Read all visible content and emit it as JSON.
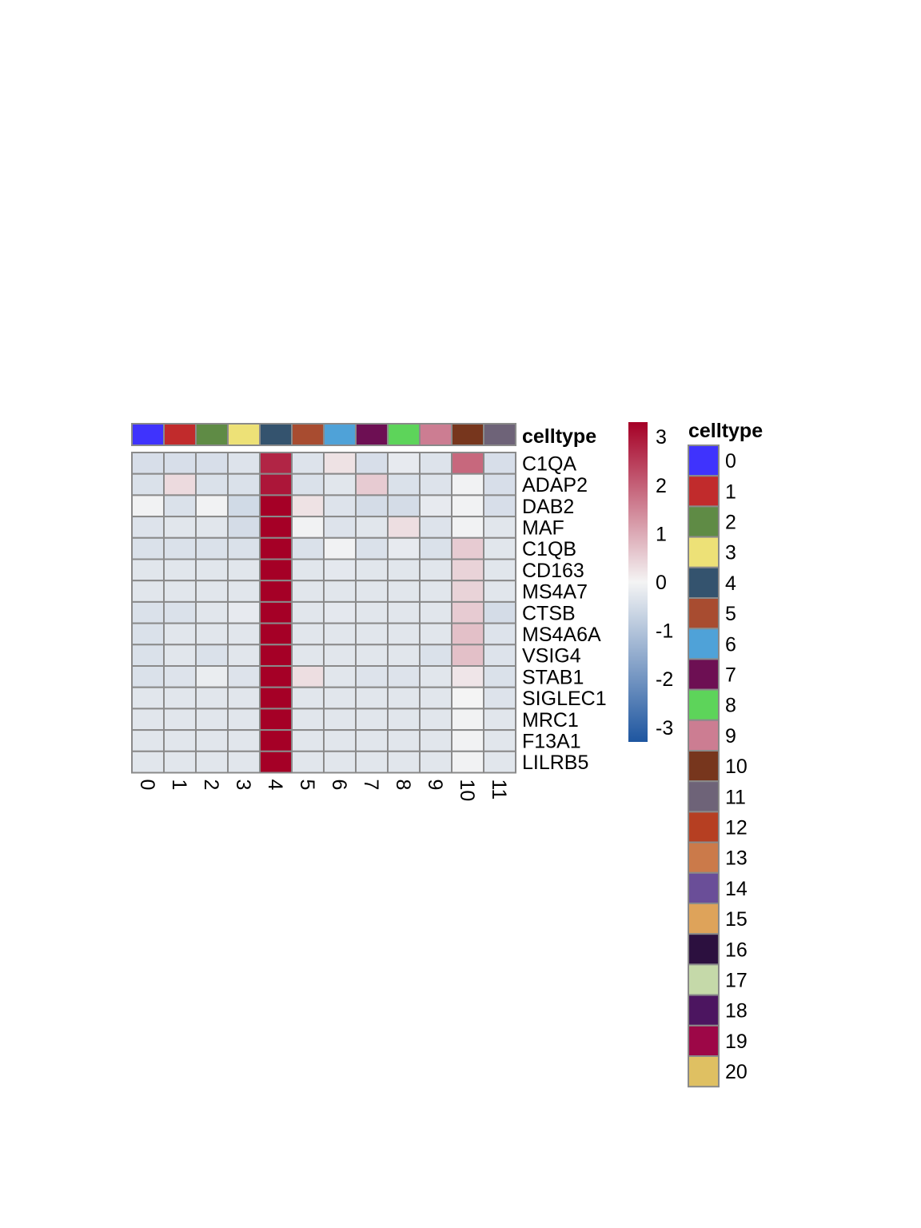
{
  "chart_data": {
    "type": "heatmap",
    "annotation_title": "celltype",
    "columns": [
      "0",
      "1",
      "2",
      "3",
      "4",
      "5",
      "6",
      "7",
      "8",
      "9",
      "10",
      "11"
    ],
    "rows": [
      "C1QA",
      "ADAP2",
      "DAB2",
      "MAF",
      "C1QB",
      "CD163",
      "MS4A7",
      "CTSB",
      "MS4A6A",
      "VSIG4",
      "STAB1",
      "SIGLEC1",
      "MRC1",
      "F13A1",
      "LILRB5"
    ],
    "values": [
      [
        -0.45,
        -0.45,
        -0.45,
        -0.35,
        2.8,
        -0.35,
        0.25,
        -0.45,
        -0.2,
        -0.35,
        1.9,
        -0.45
      ],
      [
        -0.4,
        0.35,
        -0.4,
        -0.4,
        3.0,
        -0.4,
        -0.3,
        0.55,
        -0.4,
        -0.35,
        -0.05,
        -0.45
      ],
      [
        -0.05,
        -0.4,
        -0.05,
        -0.55,
        3.3,
        0.25,
        -0.35,
        -0.5,
        -0.5,
        -0.2,
        -0.05,
        -0.45
      ],
      [
        -0.35,
        -0.3,
        -0.3,
        -0.5,
        3.3,
        -0.05,
        -0.35,
        -0.3,
        0.3,
        -0.35,
        -0.05,
        -0.3
      ],
      [
        -0.4,
        -0.4,
        -0.4,
        -0.4,
        3.3,
        -0.4,
        -0.05,
        -0.4,
        -0.2,
        -0.4,
        0.55,
        -0.3
      ],
      [
        -0.3,
        -0.3,
        -0.3,
        -0.3,
        3.3,
        -0.3,
        -0.25,
        -0.3,
        -0.3,
        -0.3,
        0.45,
        -0.3
      ],
      [
        -0.3,
        -0.3,
        -0.3,
        -0.3,
        3.3,
        -0.3,
        -0.3,
        -0.3,
        -0.3,
        -0.3,
        0.45,
        -0.3
      ],
      [
        -0.4,
        -0.4,
        -0.3,
        -0.2,
        3.3,
        -0.3,
        -0.25,
        -0.3,
        -0.3,
        -0.3,
        0.55,
        -0.5
      ],
      [
        -0.4,
        -0.3,
        -0.3,
        -0.3,
        3.3,
        -0.3,
        -0.3,
        -0.3,
        -0.3,
        -0.3,
        0.7,
        -0.35
      ],
      [
        -0.4,
        -0.3,
        -0.4,
        -0.3,
        3.3,
        -0.3,
        -0.3,
        -0.3,
        -0.3,
        -0.4,
        0.7,
        -0.35
      ],
      [
        -0.4,
        -0.35,
        -0.15,
        -0.35,
        3.3,
        0.3,
        -0.3,
        -0.35,
        -0.35,
        -0.3,
        0.2,
        -0.4
      ],
      [
        -0.3,
        -0.3,
        -0.3,
        -0.3,
        3.3,
        -0.3,
        -0.3,
        -0.3,
        -0.3,
        -0.3,
        0.0,
        -0.35
      ],
      [
        -0.3,
        -0.3,
        -0.3,
        -0.3,
        3.3,
        -0.3,
        -0.3,
        -0.3,
        -0.3,
        -0.3,
        -0.05,
        -0.3
      ],
      [
        -0.3,
        -0.3,
        -0.3,
        -0.3,
        3.3,
        -0.3,
        -0.3,
        -0.3,
        -0.3,
        -0.3,
        -0.05,
        -0.3
      ],
      [
        -0.3,
        -0.3,
        -0.3,
        -0.3,
        3.3,
        -0.3,
        -0.3,
        -0.3,
        -0.3,
        -0.3,
        -0.05,
        -0.3
      ]
    ],
    "color_scale": {
      "min": -3.3,
      "max": 3.3,
      "ticks": [
        "3",
        "2",
        "1",
        "0",
        "-1",
        "-2",
        "-3"
      ],
      "tick_values": [
        3,
        2,
        1,
        0,
        -1,
        -2,
        -3
      ],
      "colors": [
        "#1e56a0",
        "#f4f4f4",
        "#a50026"
      ]
    },
    "celltype_colors": {
      "0": "#3f33fd",
      "1": "#c12b2c",
      "2": "#5f8b45",
      "3": "#ede177",
      "4": "#34536e",
      "5": "#a84c30",
      "6": "#4fa2d8",
      "7": "#6d0f53",
      "8": "#5dd45a",
      "9": "#cc7d92",
      "10": "#77361d",
      "11": "#6e6378",
      "12": "#b63f22",
      "13": "#cb7a4a",
      "14": "#6a4e98",
      "15": "#dea35a",
      "16": "#2c103f",
      "17": "#c5d9a9",
      "18": "#4c1560",
      "19": "#9d0747",
      "20": "#dfc062"
    },
    "legend_entries": [
      "0",
      "1",
      "2",
      "3",
      "4",
      "5",
      "6",
      "7",
      "8",
      "9",
      "10",
      "11",
      "12",
      "13",
      "14",
      "15",
      "16",
      "17",
      "18",
      "19",
      "20"
    ]
  }
}
